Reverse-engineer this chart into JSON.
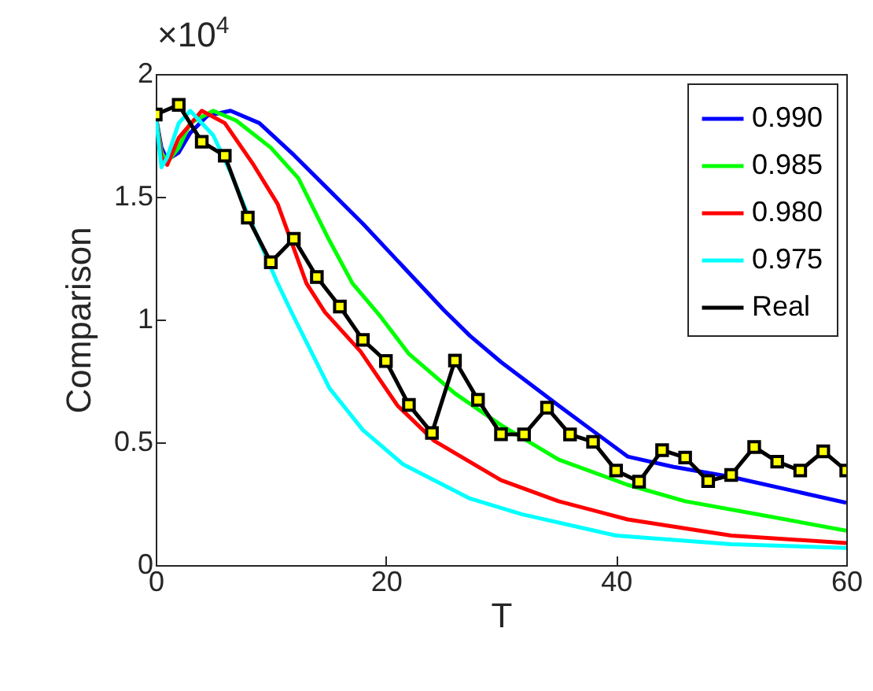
{
  "chart_data": {
    "type": "line",
    "xlabel": "T",
    "ylabel": "Comparison",
    "annotations": [
      "×10$^{4}$"
    ],
    "xlim": [
      0,
      60
    ],
    "ylim": [
      0,
      2
    ],
    "xticks": [
      0,
      20,
      40,
      60
    ],
    "yticks": [
      0,
      0.5,
      1,
      1.5,
      2
    ],
    "grid": false,
    "legend": "top right",
    "line_style": "solid",
    "series": [
      {
        "name": "0.990",
        "color": "#0000ff",
        "marker": "none",
        "x": [
          0,
          0.5,
          1,
          2,
          3,
          4.5,
          6.5,
          9,
          12,
          15,
          18,
          21,
          25,
          27.3,
          30,
          35,
          41,
          45,
          50,
          60
        ],
        "values": [
          1.83,
          1.7,
          1.65,
          1.68,
          1.76,
          1.83,
          1.85,
          1.8,
          1.67,
          1.53,
          1.39,
          1.24,
          1.04,
          0.934,
          0.827,
          0.65,
          0.442,
          0.4,
          0.359,
          0.254
        ]
      },
      {
        "name": "0.985",
        "color": "#00ff00",
        "marker": "none",
        "x": [
          0,
          0.5,
          1,
          2,
          3,
          5,
          7,
          10,
          12.4,
          15,
          17.1,
          19.4,
          22,
          26,
          30,
          35,
          41,
          46,
          52.3,
          60
        ],
        "values": [
          1.83,
          1.68,
          1.64,
          1.7,
          1.8,
          1.85,
          1.81,
          1.7,
          1.575,
          1.33,
          1.147,
          1.02,
          0.86,
          0.699,
          0.57,
          0.43,
          0.327,
          0.26,
          0.207,
          0.14
        ]
      },
      {
        "name": "0.980",
        "color": "#ff0000",
        "marker": "none",
        "x": [
          0,
          0.5,
          1,
          2,
          4,
          6,
          8.5,
          10.6,
          13.1,
          14.7,
          17.8,
          21,
          24.2,
          27.3,
          30,
          35,
          41,
          50,
          60
        ],
        "values": [
          1.83,
          1.66,
          1.63,
          1.74,
          1.85,
          1.8,
          1.63,
          1.47,
          1.147,
          1.03,
          0.87,
          0.65,
          0.506,
          0.42,
          0.346,
          0.26,
          0.186,
          0.12,
          0.09
        ]
      },
      {
        "name": "0.975",
        "color": "#00ffff",
        "marker": "none",
        "x": [
          0,
          0.5,
          1,
          2,
          3,
          5,
          6.5,
          7.8,
          10.6,
          11.9,
          15.1,
          18,
          21.5,
          27.3,
          31.8,
          40,
          50,
          60
        ],
        "values": [
          1.83,
          1.62,
          1.66,
          1.8,
          1.85,
          1.75,
          1.6,
          1.45,
          1.147,
          1.02,
          0.72,
          0.55,
          0.41,
          0.271,
          0.207,
          0.12,
          0.085,
          0.07
        ]
      },
      {
        "name": "Real",
        "color": "#000000",
        "marker": "square",
        "x": [
          0,
          2,
          4,
          6,
          8,
          10,
          12,
          14,
          16,
          18,
          20,
          22,
          24,
          26,
          28,
          30,
          32,
          34,
          36,
          38,
          40,
          42,
          44,
          46,
          48,
          50,
          52,
          54,
          56,
          58,
          60
        ],
        "values": [
          1.835,
          1.874,
          1.724,
          1.667,
          1.415,
          1.233,
          1.329,
          1.173,
          1.053,
          0.917,
          0.831,
          0.652,
          0.538,
          0.833,
          0.673,
          0.533,
          0.532,
          0.641,
          0.532,
          0.502,
          0.385,
          0.34,
          0.468,
          0.438,
          0.342,
          0.367,
          0.481,
          0.421,
          0.385,
          0.463,
          0.385
        ]
      }
    ]
  }
}
